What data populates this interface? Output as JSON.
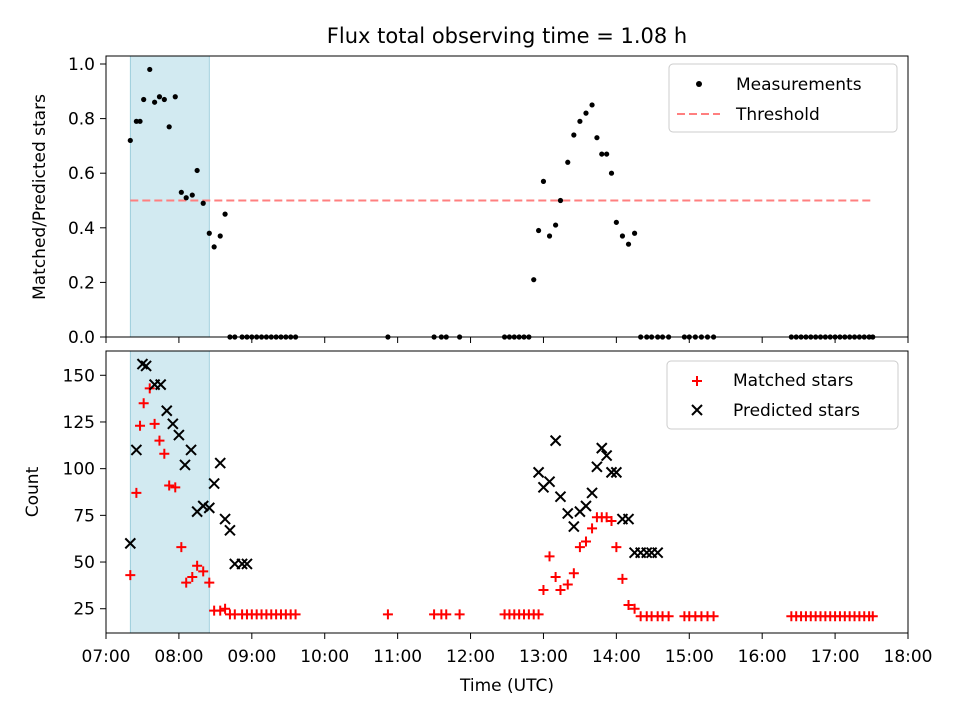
{
  "title": "Flux total observing time = 1.08 h",
  "xlabel": "Time (UTC)",
  "x_ticks": [
    "07:00",
    "08:00",
    "09:00",
    "10:00",
    "11:00",
    "12:00",
    "13:00",
    "14:00",
    "15:00",
    "16:00",
    "17:00",
    "18:00"
  ],
  "chart_data": [
    {
      "type": "scatter",
      "ylabel": "Matched/Predicted stars",
      "ylim": [
        0,
        1.0
      ],
      "yticks": [
        "0.0",
        "0.2",
        "0.4",
        "0.6",
        "0.8",
        "1.0"
      ],
      "xlim": [
        "07:00",
        "18:00"
      ],
      "legend": {
        "placement": "top-right",
        "entries": [
          "Measurements",
          "Threshold"
        ]
      },
      "colors": {
        "measurements": "#000000",
        "threshold": "#ff7f7f",
        "shade": "#add8e6"
      },
      "shaded_interval": [
        "07:20",
        "08:25"
      ],
      "threshold": {
        "value": 0.5,
        "x_start": "07:20",
        "x_end": "17:30"
      },
      "series": [
        {
          "name": "Measurements",
          "x": [
            "07:20",
            "07:25",
            "07:28",
            "07:31",
            "07:36",
            "07:40",
            "07:44",
            "07:48",
            "07:52",
            "07:57",
            "08:02",
            "08:06",
            "08:11",
            "08:15",
            "08:20",
            "08:25",
            "08:29",
            "08:34",
            "08:38",
            "08:42",
            "08:46",
            "08:52",
            "08:56",
            "09:00",
            "09:04",
            "09:08",
            "09:12",
            "09:16",
            "09:20",
            "09:24",
            "09:28",
            "09:32",
            "09:36",
            "10:52",
            "11:30",
            "11:36",
            "11:40",
            "11:51",
            "12:28",
            "12:32",
            "12:36",
            "12:40",
            "12:44",
            "12:48",
            "12:52",
            "12:56",
            "13:00",
            "13:05",
            "13:10",
            "13:14",
            "13:20",
            "13:25",
            "13:30",
            "13:35",
            "13:40",
            "13:44",
            "13:48",
            "13:52",
            "13:56",
            "14:00",
            "14:05",
            "14:10",
            "14:15",
            "14:20",
            "14:25",
            "14:29",
            "14:34",
            "14:38",
            "14:43",
            "14:56",
            "15:00",
            "15:05",
            "15:10",
            "15:15",
            "15:20",
            "16:24",
            "16:28",
            "16:32",
            "16:36",
            "16:40",
            "16:44",
            "16:48",
            "16:52",
            "16:56",
            "17:00",
            "17:04",
            "17:08",
            "17:12",
            "17:16",
            "17:20",
            "17:24",
            "17:28",
            "17:31"
          ],
          "y": [
            0.72,
            0.79,
            0.79,
            0.87,
            0.98,
            0.86,
            0.88,
            0.87,
            0.77,
            0.88,
            0.53,
            0.51,
            0.52,
            0.61,
            0.49,
            0.38,
            0.33,
            0.37,
            0.45,
            0.0,
            0.0,
            0.0,
            0.0,
            0.0,
            0.0,
            0.0,
            0.0,
            0.0,
            0.0,
            0.0,
            0.0,
            0.0,
            0.0,
            0.0,
            0.0,
            0.0,
            0.0,
            0.0,
            0.0,
            0.0,
            0.0,
            0.0,
            0.0,
            0.0,
            0.21,
            0.39,
            0.57,
            0.37,
            0.41,
            0.5,
            0.64,
            0.74,
            0.79,
            0.82,
            0.85,
            0.73,
            0.67,
            0.67,
            0.6,
            0.42,
            0.37,
            0.34,
            0.38,
            0.0,
            0.0,
            0.0,
            0.0,
            0.0,
            0.0,
            0.0,
            0.0,
            0.0,
            0.0,
            0.0,
            0.0,
            0.0,
            0.0,
            0.0,
            0.0,
            0.0,
            0.0,
            0.0,
            0.0,
            0.0,
            0.0,
            0.0,
            0.0,
            0.0,
            0.0,
            0.0,
            0.0,
            0.0,
            0.0
          ]
        }
      ]
    },
    {
      "type": "scatter",
      "ylabel": "Count",
      "ylim": [
        12,
        163
      ],
      "yticks": [
        "25",
        "50",
        "75",
        "100",
        "125",
        "150"
      ],
      "xlim": [
        "07:00",
        "18:00"
      ],
      "legend": {
        "placement": "top-right",
        "entries": [
          "Matched stars",
          "Predicted stars"
        ]
      },
      "colors": {
        "matched": "#ff0000",
        "predicted": "#000000",
        "shade": "#add8e6"
      },
      "shaded_interval": [
        "07:20",
        "08:25"
      ],
      "series": [
        {
          "name": "Matched stars",
          "x": [
            "07:20",
            "07:25",
            "07:28",
            "07:31",
            "07:36",
            "07:40",
            "07:44",
            "07:48",
            "07:52",
            "07:57",
            "08:02",
            "08:06",
            "08:11",
            "08:15",
            "08:20",
            "08:25",
            "08:29",
            "08:34",
            "08:38",
            "08:42",
            "08:46",
            "08:52",
            "08:56",
            "09:00",
            "09:04",
            "09:08",
            "09:12",
            "09:16",
            "09:20",
            "09:24",
            "09:28",
            "09:32",
            "09:36",
            "10:52",
            "11:30",
            "11:36",
            "11:40",
            "11:51",
            "12:28",
            "12:32",
            "12:36",
            "12:40",
            "12:44",
            "12:48",
            "12:52",
            "12:56",
            "13:00",
            "13:05",
            "13:10",
            "13:14",
            "13:20",
            "13:25",
            "13:30",
            "13:35",
            "13:40",
            "13:44",
            "13:48",
            "13:52",
            "13:56",
            "14:00",
            "14:05",
            "14:10",
            "14:15",
            "14:20",
            "14:25",
            "14:29",
            "14:34",
            "14:38",
            "14:43",
            "14:56",
            "15:00",
            "15:05",
            "15:10",
            "15:15",
            "15:20",
            "16:24",
            "16:28",
            "16:32",
            "16:36",
            "16:40",
            "16:44",
            "16:48",
            "16:52",
            "16:56",
            "17:00",
            "17:04",
            "17:08",
            "17:12",
            "17:16",
            "17:20",
            "17:24",
            "17:28",
            "17:31"
          ],
          "y": [
            43,
            87,
            123,
            135,
            143,
            124,
            115,
            108,
            91,
            90,
            58,
            39,
            42,
            48,
            45,
            39,
            24,
            24,
            25,
            22,
            22,
            22,
            22,
            22,
            22,
            22,
            22,
            22,
            22,
            22,
            22,
            22,
            22,
            22,
            22,
            22,
            22,
            22,
            22,
            22,
            22,
            22,
            22,
            22,
            22,
            22,
            35,
            53,
            42,
            35,
            38,
            44,
            58,
            61,
            68,
            74,
            74,
            74,
            72,
            58,
            41,
            27,
            25,
            21,
            21,
            21,
            21,
            21,
            21,
            21,
            21,
            21,
            21,
            21,
            21,
            21,
            21,
            21,
            21,
            21,
            21,
            21,
            21,
            21,
            21,
            21,
            21,
            21,
            21,
            21,
            21,
            21,
            21
          ]
        },
        {
          "name": "Predicted stars",
          "x": [
            "07:20",
            "07:25",
            "07:30",
            "07:33",
            "07:40",
            "07:45",
            "07:50",
            "07:55",
            "08:00",
            "08:05",
            "08:10",
            "08:15",
            "08:20",
            "08:25",
            "08:29",
            "08:34",
            "08:38",
            "08:42",
            "08:46",
            "08:52",
            "08:56",
            "12:56",
            "13:00",
            "13:05",
            "13:10",
            "13:14",
            "13:20",
            "13:25",
            "13:30",
            "13:35",
            "13:40",
            "13:44",
            "13:48",
            "13:52",
            "13:56",
            "14:00",
            "14:05",
            "14:10",
            "14:15",
            "14:20",
            "14:25",
            "14:29",
            "14:34"
          ],
          "y": [
            60,
            110,
            156,
            155,
            145,
            145,
            131,
            124,
            118,
            102,
            110,
            77,
            80,
            79,
            92,
            103,
            73,
            67,
            49,
            49,
            49,
            98,
            90,
            93,
            115,
            85,
            76,
            69,
            77,
            80,
            87,
            101,
            111,
            107,
            98,
            98,
            73,
            73,
            55,
            55,
            55,
            55,
            55
          ]
        }
      ]
    }
  ]
}
